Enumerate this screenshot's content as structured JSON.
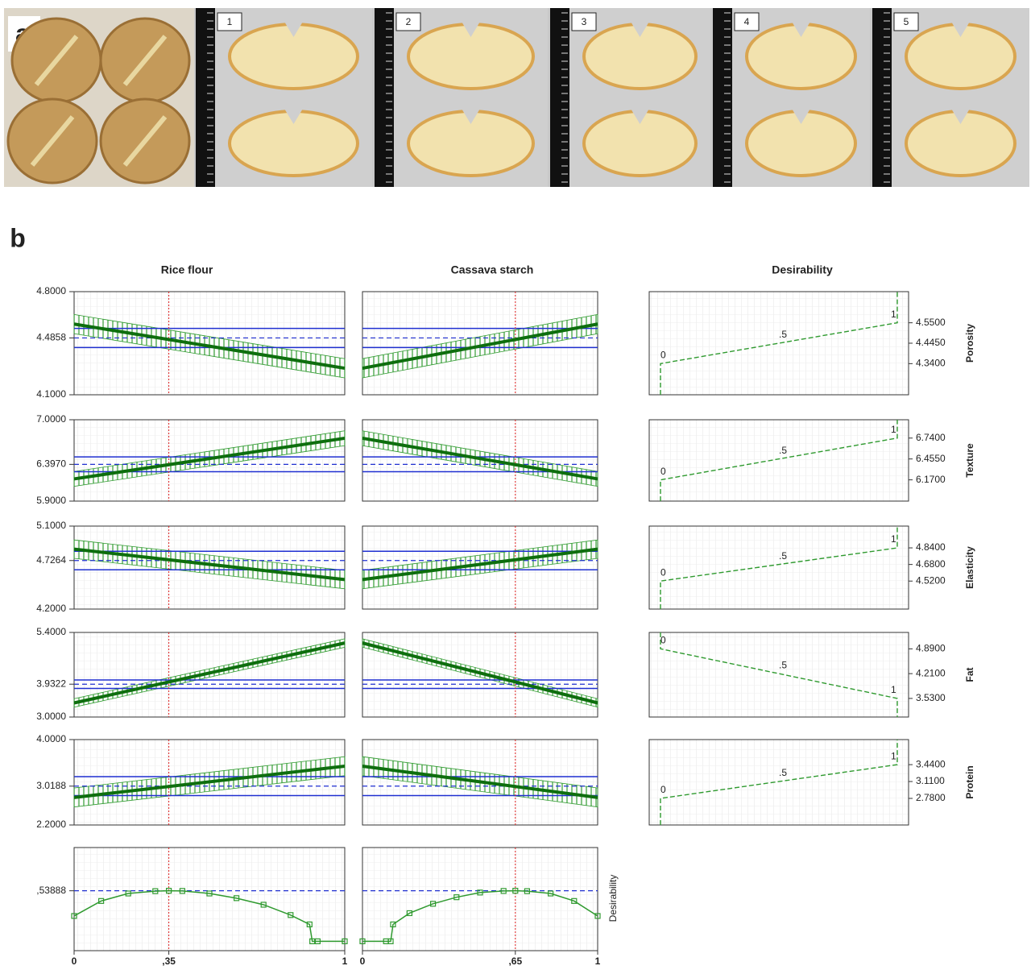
{
  "panel_a": {
    "label": "a",
    "samples": [
      "1",
      "2",
      "3",
      "4",
      "5"
    ]
  },
  "panel_b": {
    "label": "b",
    "factors": [
      {
        "name": "Rice flour",
        "xlim": [
          0,
          1
        ],
        "xticks": [
          0,
          {
            "value": 0.35,
            "label": ",35"
          },
          1
        ],
        "current": 0.35,
        "desirability": {
          "x": [
            0,
            0.1,
            0.2,
            0.3,
            0.35,
            0.4,
            0.5,
            0.6,
            0.7,
            0.8,
            0.87,
            0.88,
            0.9,
            1.0
          ],
          "values": [
            0.27,
            0.43,
            0.51,
            0.535,
            0.539,
            0.537,
            0.51,
            0.46,
            0.39,
            0.28,
            0.18,
            0,
            0,
            0
          ]
        }
      },
      {
        "name": "Cassava starch",
        "xlim": [
          0,
          1
        ],
        "xticks": [
          0,
          {
            "value": 0.65,
            "label": ",65"
          },
          1
        ],
        "current": 0.65,
        "desirability": {
          "x": [
            0,
            0.1,
            0.12,
            0.13,
            0.2,
            0.3,
            0.4,
            0.5,
            0.6,
            0.65,
            0.7,
            0.8,
            0.9,
            1.0
          ],
          "values": [
            0,
            0,
            0,
            0.18,
            0.3,
            0.4,
            0.47,
            0.52,
            0.537,
            0.539,
            0.535,
            0.51,
            0.43,
            0.27
          ]
        }
      }
    ],
    "desirability_title": "Desirability",
    "desirability_marks": [
      "0",
      ".5",
      "1"
    ],
    "responses": [
      {
        "name": "Porosity",
        "ylim": [
          4.1,
          4.8
        ],
        "yticks": [
          {
            "value": 4.1,
            "label": "4.1000"
          },
          {
            "value": 4.4858,
            "label": "4.4858"
          },
          {
            "value": 4.8,
            "label": "4.8000"
          }
        ],
        "predicted": 4.4858,
        "ci": 0.065,
        "profiles": [
          [
            4.58,
            4.28
          ],
          [
            4.28,
            4.58
          ]
        ],
        "dlim": [
          4.18,
          4.71
        ],
        "dticks": [
          {
            "value": 4.34,
            "label": "4.3400"
          },
          {
            "value": 4.445,
            "label": "4.4450"
          },
          {
            "value": 4.55,
            "label": "4.5500"
          }
        ]
      },
      {
        "name": "Texture",
        "ylim": [
          5.9,
          7.0
        ],
        "yticks": [
          {
            "value": 5.9,
            "label": "5.9000"
          },
          {
            "value": 6.397,
            "label": "6.3970"
          },
          {
            "value": 7.0,
            "label": "7.0000"
          }
        ],
        "predicted": 6.397,
        "ci": 0.1,
        "profiles": [
          [
            6.2,
            6.75
          ],
          [
            6.75,
            6.2
          ]
        ],
        "dlim": [
          5.88,
          6.99
        ],
        "dticks": [
          {
            "value": 6.17,
            "label": "6.1700"
          },
          {
            "value": 6.455,
            "label": "6.4550"
          },
          {
            "value": 6.74,
            "label": "6.7400"
          }
        ]
      },
      {
        "name": "Elasticity",
        "ylim": [
          4.2,
          5.1
        ],
        "yticks": [
          {
            "value": 4.2,
            "label": "4.2000"
          },
          {
            "value": 4.7264,
            "label": "4.7264"
          },
          {
            "value": 5.1,
            "label": "5.1000"
          }
        ],
        "predicted": 4.7264,
        "ci": 0.1,
        "profiles": [
          [
            4.85,
            4.52
          ],
          [
            4.52,
            4.85
          ]
        ],
        "dlim": [
          4.25,
          5.05
        ],
        "dticks": [
          {
            "value": 4.52,
            "label": "4.5200"
          },
          {
            "value": 4.68,
            "label": "4.6800"
          },
          {
            "value": 4.84,
            "label": "4.8400"
          }
        ]
      },
      {
        "name": "Fat",
        "ylim": [
          3.0,
          5.4
        ],
        "yticks": [
          {
            "value": 3.0,
            "label": "3.0000"
          },
          {
            "value": 3.9322,
            "label": "3.9322"
          },
          {
            "value": 5.4,
            "label": "5.4000"
          }
        ],
        "predicted": 3.9322,
        "ci": 0.12,
        "profiles": [
          [
            3.4,
            5.1
          ],
          [
            5.1,
            3.4
          ]
        ],
        "dlim": [
          3.02,
          5.34
        ],
        "dticks": [
          {
            "value": 4.89,
            "label": "4.8900"
          },
          {
            "value": 4.21,
            "label": "4.2100"
          },
          {
            "value": 3.53,
            "label": "3.5300"
          }
        ]
      },
      {
        "name": "Protein",
        "ylim": [
          2.2,
          4.0
        ],
        "yticks": [
          {
            "value": 2.2,
            "label": "2.2000"
          },
          {
            "value": 3.0188,
            "label": "3.0188"
          },
          {
            "value": 4.0,
            "label": "4.0000"
          }
        ],
        "predicted": 3.0188,
        "ci": 0.2,
        "profiles": [
          [
            2.78,
            3.44
          ],
          [
            3.44,
            2.78
          ]
        ],
        "dlim": [
          2.26,
          3.93
        ],
        "dticks": [
          {
            "value": 2.78,
            "label": "2.7800"
          },
          {
            "value": 3.11,
            "label": "3.1100"
          },
          {
            "value": 3.44,
            "label": "3.4400"
          }
        ]
      }
    ],
    "overall": {
      "ylabel": "Desirability",
      "ylim": [
        -0.1,
        1.0
      ],
      "yticks": [
        {
          "value": 0.53888,
          "label": ",53888"
        }
      ]
    }
  }
}
